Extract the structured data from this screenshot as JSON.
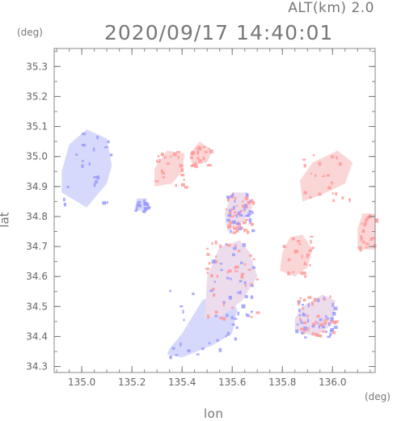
{
  "header": {
    "altitude_label": "ALT(km) 2.0",
    "timestamp": "2020/09/17 14:40:01"
  },
  "axes": {
    "y_unit": "(deg)",
    "x_unit": "(deg)",
    "x_label": "lon",
    "y_label": "lat"
  },
  "chart_data": {
    "type": "heatmap",
    "title": "2020/09/17 14:40:01",
    "subtitle": "ALT(km) 2.0",
    "xlabel": "lon",
    "ylabel": "lat",
    "x_unit": "(deg)",
    "y_unit": "(deg)",
    "xlim": [
      134.89,
      136.17
    ],
    "ylim": [
      34.28,
      35.36
    ],
    "x_ticks": [
      135.0,
      135.2,
      135.4,
      135.6,
      135.8,
      136.0
    ],
    "x_tick_labels": [
      "135.0",
      "135.2",
      "135.4",
      "135.6",
      "135.8",
      "136.0"
    ],
    "y_ticks": [
      34.3,
      34.4,
      34.5,
      34.6,
      34.7,
      34.8,
      34.9,
      35.0,
      35.1,
      35.2,
      35.3
    ],
    "y_tick_labels": [
      "34.3",
      "34.4",
      "34.5",
      "34.6",
      "34.7",
      "34.8",
      "34.9",
      "35.0",
      "35.1",
      "35.2",
      "35.3"
    ],
    "grid": false,
    "colors": {
      "positive": "#ff9999",
      "negative": "#9999ff",
      "axis": "#777777"
    },
    "echo_regions": [
      {
        "sign": "negative",
        "lon": [
          134.92,
          135.02,
          135.1,
          135.12,
          135.1,
          135.02,
          134.95,
          134.92
        ],
        "lat": [
          34.88,
          34.83,
          34.91,
          34.97,
          35.06,
          35.09,
          35.04,
          34.95
        ]
      },
      {
        "sign": "negative",
        "lon": [
          135.34,
          135.4,
          135.52,
          135.6,
          135.62,
          135.58,
          135.48,
          135.4,
          135.35
        ],
        "lat": [
          34.34,
          34.33,
          34.37,
          34.41,
          34.49,
          34.56,
          34.52,
          34.41,
          34.36
        ]
      },
      {
        "sign": "mixed",
        "lon": [
          135.49,
          135.56,
          135.64,
          135.7,
          135.67,
          135.63,
          135.55,
          135.5
        ],
        "lat": [
          34.46,
          34.47,
          34.52,
          34.6,
          34.68,
          34.72,
          34.7,
          34.6
        ]
      },
      {
        "sign": "positive",
        "lon": [
          135.88,
          135.95,
          136.05,
          136.08,
          136.02,
          135.92,
          135.87
        ],
        "lat": [
          34.85,
          34.87,
          34.91,
          34.98,
          35.02,
          34.98,
          34.92
        ]
      },
      {
        "sign": "positive",
        "lon": [
          135.79,
          135.85,
          135.9,
          135.92,
          135.88,
          135.83,
          135.8
        ],
        "lat": [
          34.62,
          34.6,
          34.63,
          34.69,
          34.74,
          34.73,
          34.68
        ]
      },
      {
        "sign": "mixed",
        "lon": [
          135.85,
          135.93,
          136.0,
          136.01,
          135.96,
          135.88,
          135.85
        ],
        "lat": [
          34.42,
          34.4,
          34.44,
          34.52,
          34.54,
          34.5,
          34.46
        ]
      },
      {
        "sign": "positive",
        "lon": [
          135.29,
          135.36,
          135.4,
          135.41,
          135.34,
          135.29
        ],
        "lat": [
          34.9,
          34.91,
          34.95,
          35.01,
          35.02,
          34.96
        ]
      },
      {
        "sign": "positive",
        "lon": [
          135.44,
          135.5,
          135.52,
          135.47,
          135.43
        ],
        "lat": [
          34.97,
          34.98,
          35.02,
          35.05,
          35.01
        ]
      },
      {
        "sign": "mixed",
        "lon": [
          135.58,
          135.64,
          135.68,
          135.66,
          135.6,
          135.57
        ],
        "lat": [
          34.75,
          34.78,
          34.83,
          34.88,
          34.88,
          34.81
        ]
      },
      {
        "sign": "positive",
        "lon": [
          136.1,
          136.17,
          136.17,
          136.12,
          136.1
        ],
        "lat": [
          34.69,
          34.69,
          34.81,
          34.81,
          34.76
        ]
      },
      {
        "sign": "negative",
        "lon": [
          135.21,
          135.25,
          135.26,
          135.22
        ],
        "lat": [
          34.82,
          34.82,
          34.86,
          34.86
        ]
      }
    ]
  }
}
